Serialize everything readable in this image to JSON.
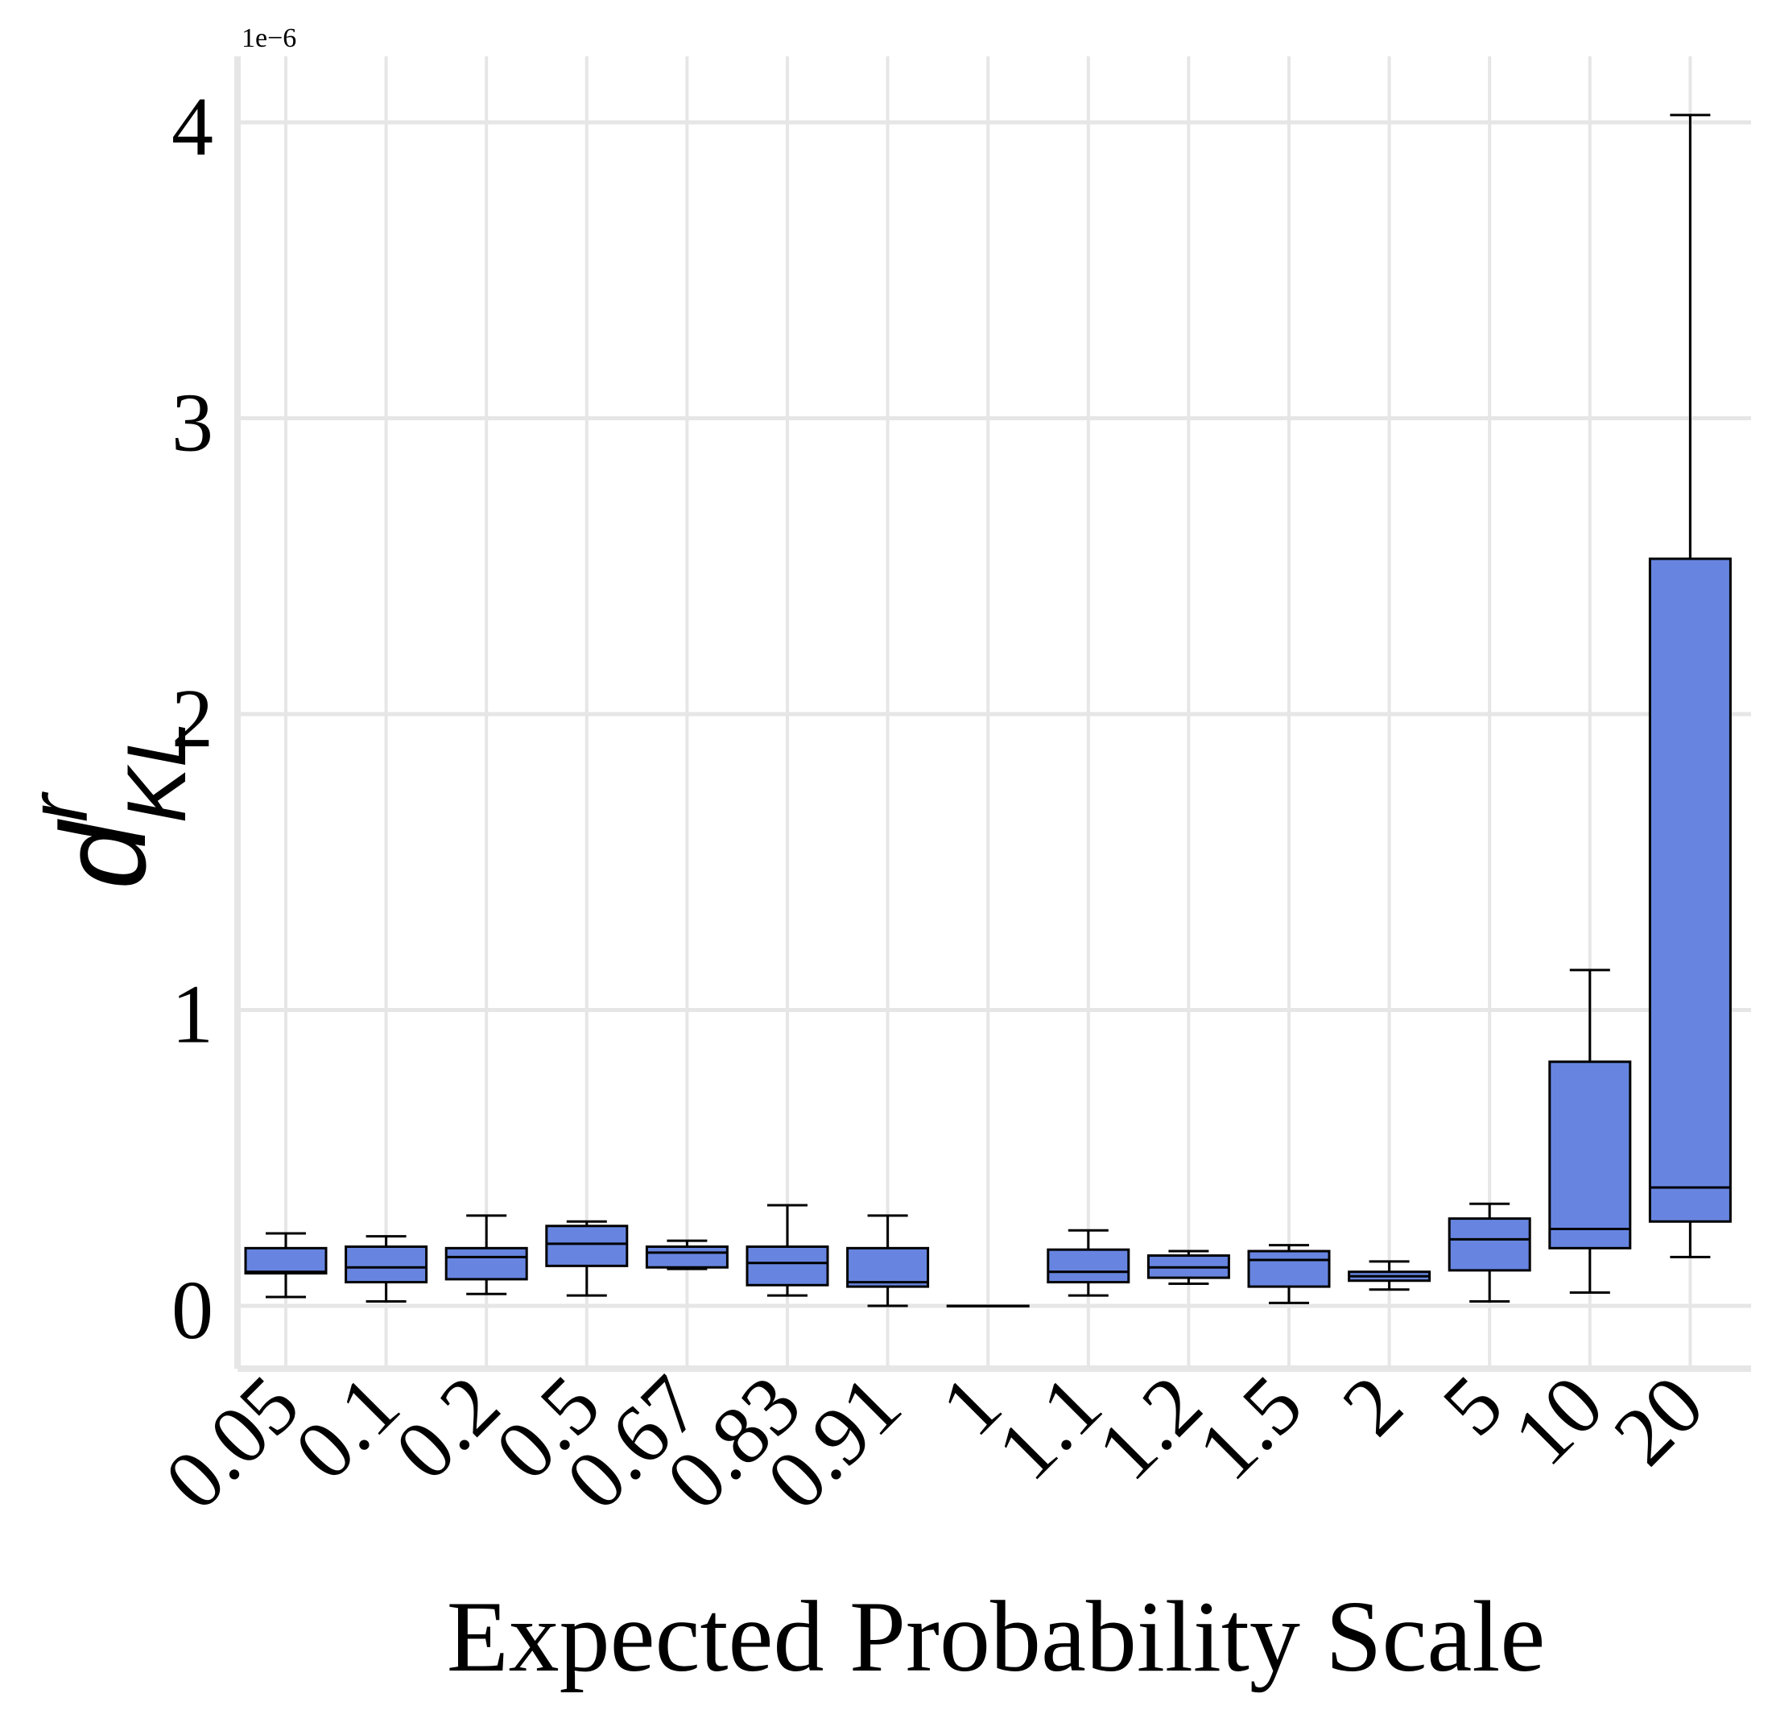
{
  "chart_data": {
    "type": "box",
    "categories": [
      "0.05",
      "0.1",
      "0.2",
      "0.5",
      "0.67",
      "0.83",
      "0.91",
      "1",
      "1.1",
      "1.2",
      "1.5",
      "2",
      "5",
      "10",
      "20"
    ],
    "boxes": [
      {
        "whisker_low": 0.03,
        "q1": 0.11,
        "median": 0.115,
        "q3": 0.195,
        "whisker_high": 0.245
      },
      {
        "whisker_low": 0.015,
        "q1": 0.08,
        "median": 0.13,
        "q3": 0.2,
        "whisker_high": 0.235
      },
      {
        "whisker_low": 0.04,
        "q1": 0.09,
        "median": 0.165,
        "q3": 0.195,
        "whisker_high": 0.305
      },
      {
        "whisker_low": 0.035,
        "q1": 0.135,
        "median": 0.21,
        "q3": 0.27,
        "whisker_high": 0.285
      },
      {
        "whisker_low": 0.125,
        "q1": 0.13,
        "median": 0.18,
        "q3": 0.2,
        "whisker_high": 0.22
      },
      {
        "whisker_low": 0.035,
        "q1": 0.07,
        "median": 0.145,
        "q3": 0.2,
        "whisker_high": 0.34
      },
      {
        "whisker_low": 0.0,
        "q1": 0.065,
        "median": 0.08,
        "q3": 0.195,
        "whisker_high": 0.305
      },
      {
        "whisker_low": 0.0,
        "q1": 0.0,
        "median": 0.0,
        "q3": 0.0,
        "whisker_high": 0.0
      },
      {
        "whisker_low": 0.035,
        "q1": 0.08,
        "median": 0.115,
        "q3": 0.19,
        "whisker_high": 0.255
      },
      {
        "whisker_low": 0.075,
        "q1": 0.095,
        "median": 0.13,
        "q3": 0.17,
        "whisker_high": 0.185
      },
      {
        "whisker_low": 0.01,
        "q1": 0.065,
        "median": 0.155,
        "q3": 0.185,
        "whisker_high": 0.205
      },
      {
        "whisker_low": 0.055,
        "q1": 0.085,
        "median": 0.1,
        "q3": 0.115,
        "whisker_high": 0.15
      },
      {
        "whisker_low": 0.015,
        "q1": 0.12,
        "median": 0.225,
        "q3": 0.295,
        "whisker_high": 0.345
      },
      {
        "whisker_low": 0.045,
        "q1": 0.195,
        "median": 0.26,
        "q3": 0.825,
        "whisker_high": 1.135
      },
      {
        "whisker_low": 0.165,
        "q1": 0.285,
        "median": 0.4,
        "q3": 2.525,
        "whisker_high": 4.025
      }
    ],
    "xlabel": "Expected Probability Scale",
    "ylabel": "d^r_KL",
    "ylabel_parts": {
      "base": "d",
      "sup": "r",
      "sub": "KL"
    },
    "y_offset_label": "1e−6",
    "y_ticks": [
      0,
      1,
      2,
      3,
      4
    ],
    "y_tick_labels": [
      "0",
      "1",
      "2",
      "3",
      "4"
    ],
    "ylim": [
      -0.19,
      4.2
    ],
    "grid": true,
    "colors": {
      "box_fill": "#6785e0",
      "box_edge": "#000000",
      "grid": "#e6e6e6",
      "background": "#ffffff"
    }
  }
}
